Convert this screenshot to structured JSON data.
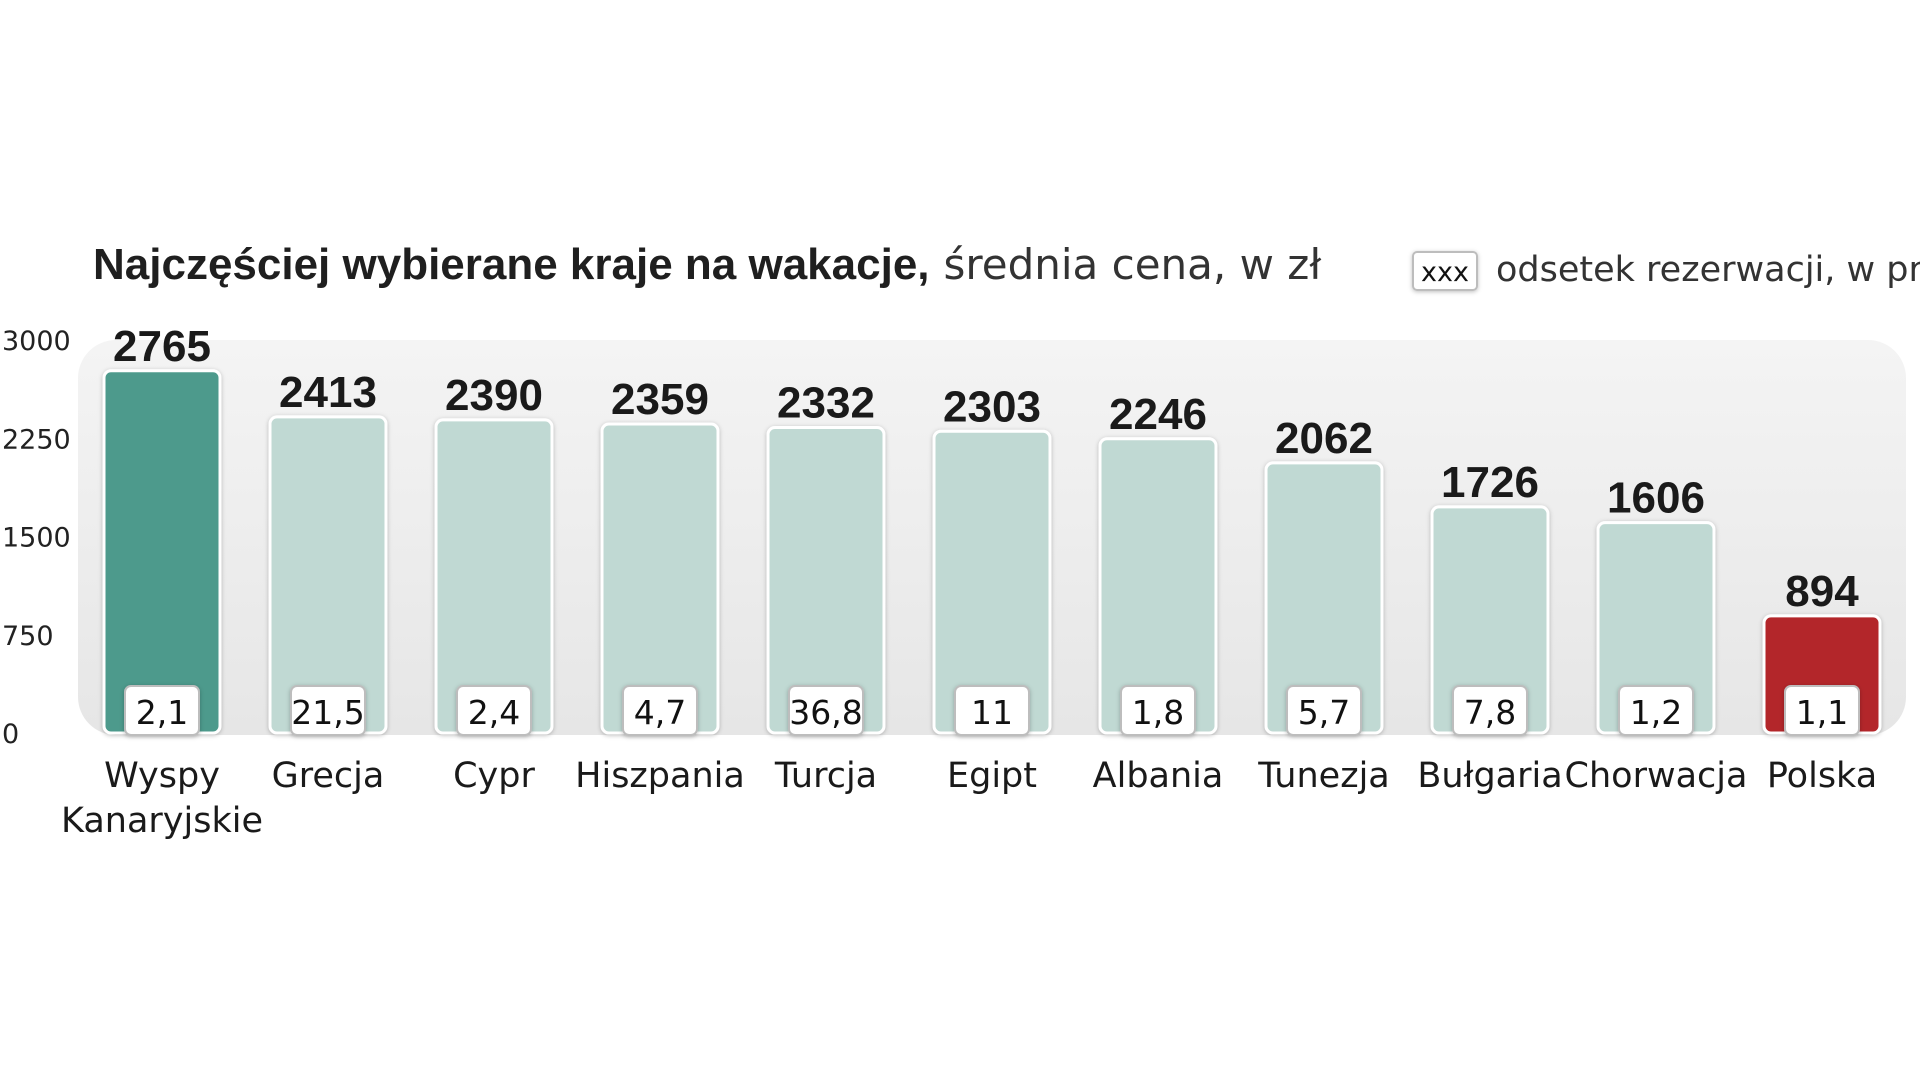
{
  "chart_data": {
    "type": "bar",
    "title": "Najczęściej wybierane kraje na wakacje,",
    "subtitle": "średnia cena, w zł",
    "legend": {
      "box_label": "xxx",
      "text": "odsetek rezerwacji, w proc."
    },
    "categories": [
      "Wyspy Kanaryjskie",
      "Grecja",
      "Cypr",
      "Hiszpania",
      "Turcja",
      "Egipt",
      "Albania",
      "Tunezja",
      "Bułgaria",
      "Chorwacja",
      "Polska"
    ],
    "category_lines": [
      [
        "Wyspy",
        "Kanaryjskie"
      ],
      [
        "Grecja"
      ],
      [
        "Cypr"
      ],
      [
        "Hiszpania"
      ],
      [
        "Turcja"
      ],
      [
        "Egipt"
      ],
      [
        "Albania"
      ],
      [
        "Tunezja"
      ],
      [
        "Bułgaria"
      ],
      [
        "Chorwacja"
      ],
      [
        "Polska"
      ]
    ],
    "values": [
      2765,
      2413,
      2390,
      2359,
      2332,
      2303,
      2246,
      2062,
      1726,
      1606,
      894
    ],
    "value_labels": [
      "2765",
      "2413",
      "2390",
      "2359",
      "2332",
      "2303",
      "2246",
      "2062",
      "1726",
      "1606",
      "894"
    ],
    "booking_share_labels": [
      "2,1",
      "21,5",
      "2,4",
      "4,7",
      "36,8",
      "11",
      "1,8",
      "5,7",
      "7,8",
      "1,2",
      "1,1"
    ],
    "yticks": [
      0,
      750,
      1500,
      2250,
      3000
    ],
    "ylim": [
      0,
      3000
    ],
    "colors": {
      "highlight_first": "#4e9a8c",
      "default": "#c0d9d3",
      "highlight_last": "#b3282a",
      "background_panel": "#ececec"
    }
  }
}
